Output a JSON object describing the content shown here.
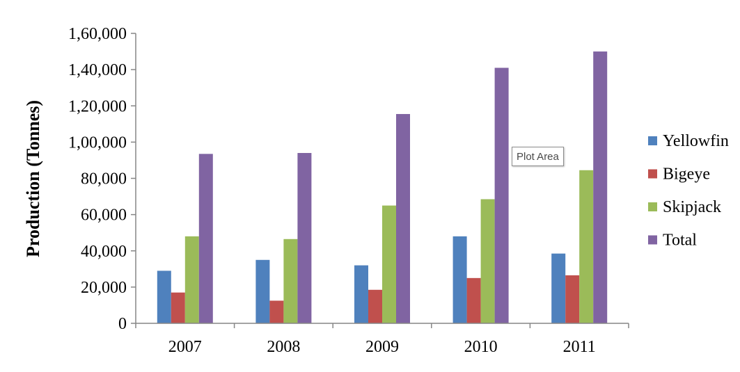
{
  "chart_data": {
    "type": "bar",
    "ylabel": "Production (Tonnes)",
    "categories": [
      "2007",
      "2008",
      "2009",
      "2010",
      "2011"
    ],
    "ylim": [
      0,
      160000
    ],
    "yticks": [
      0,
      20000,
      40000,
      60000,
      80000,
      100000,
      120000,
      140000,
      160000
    ],
    "ytick_labels": [
      "0",
      "20,000",
      "40,000",
      "60,000",
      "80,000",
      "1,00,000",
      "1,20,000",
      "1,40,000",
      "1,60,000"
    ],
    "series": [
      {
        "name": "Yellowfin",
        "color": "#4F81BD",
        "values": [
          29000,
          35000,
          32000,
          48000,
          38500
        ]
      },
      {
        "name": "Bigeye",
        "color": "#C0504D",
        "values": [
          17000,
          12500,
          18500,
          25000,
          26500
        ]
      },
      {
        "name": "Skipjack",
        "color": "#9BBB59",
        "values": [
          48000,
          46500,
          65000,
          68500,
          84500
        ]
      },
      {
        "name": "Total",
        "color": "#8064A2",
        "values": [
          93500,
          94000,
          115500,
          141000,
          150000
        ]
      }
    ],
    "legend_position": "right",
    "grid": false
  },
  "tooltip": {
    "text": "Plot Area"
  }
}
